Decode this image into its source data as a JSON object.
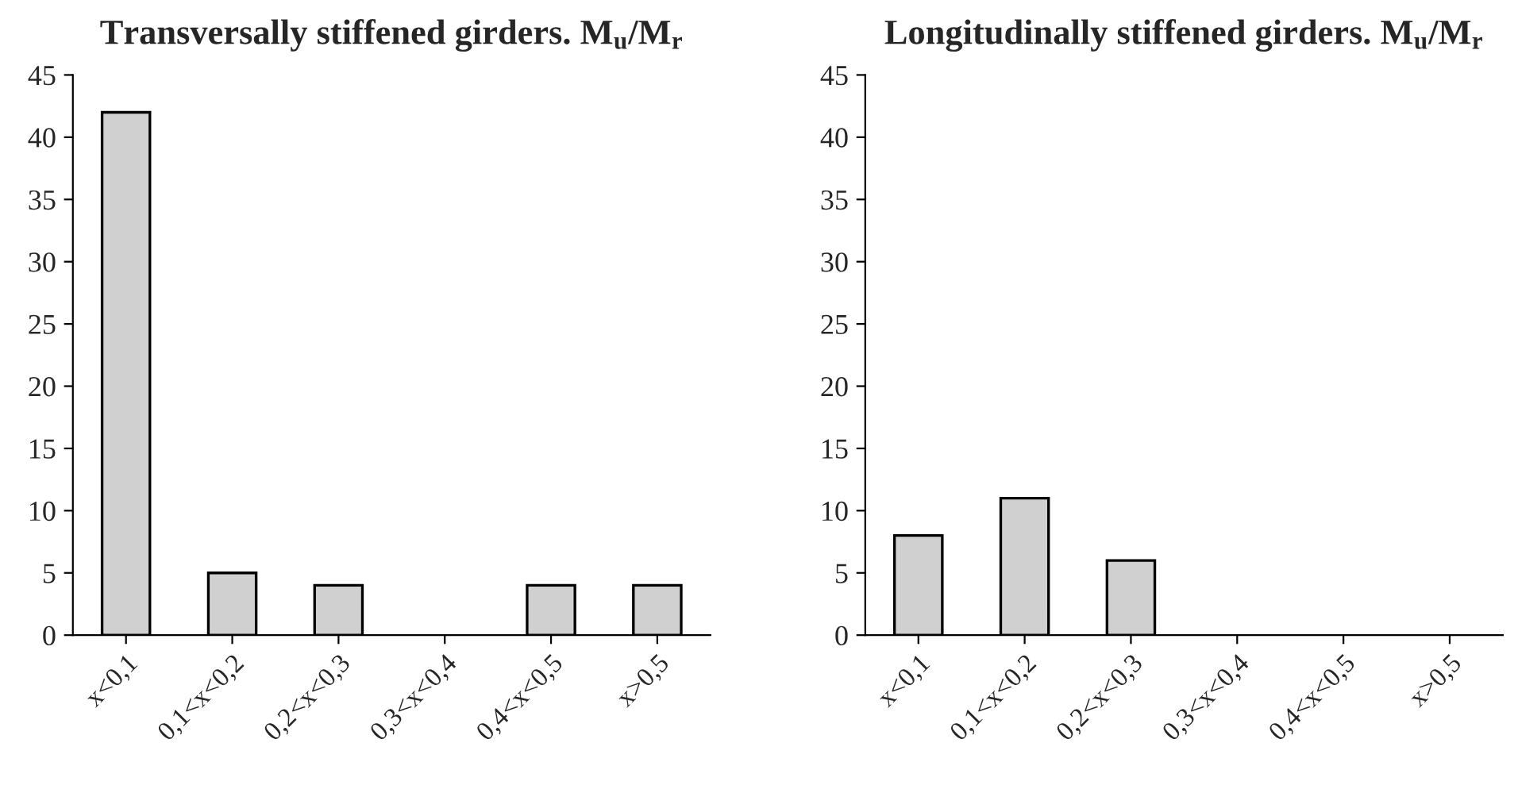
{
  "chart_data": [
    {
      "type": "bar",
      "title": "Transversally stiffened girders. M$_{u}$/M$_{r}$",
      "categories": [
        "x<0,1",
        "0,1<x<0,2",
        "0,2<x<0,3",
        "0,3<x<0,4",
        "0,4<x<0,5",
        "x>0,5"
      ],
      "values": [
        42,
        5,
        4,
        0,
        4,
        4
      ],
      "color": "#d0d0d0",
      "ylim": [
        0,
        45
      ],
      "yticks": [
        0,
        5,
        10,
        15,
        20,
        25,
        30,
        35,
        40,
        45
      ],
      "grid": false
    },
    {
      "type": "bar",
      "title": "Longitudinally stiffened girders. M$_{u}$/M$_{r}$",
      "categories": [
        "x<0,1",
        "0,1<x<0,2",
        "0,2<x<0,3",
        "0,3<x<0,4",
        "0,4<x<0,5",
        "x>0,5"
      ],
      "values": [
        8,
        11,
        6,
        0,
        0,
        0
      ],
      "color": "#d0d0d0",
      "ylim": [
        0,
        45
      ],
      "yticks": [
        0,
        5,
        10,
        15,
        20,
        25,
        30,
        35,
        40,
        45
      ],
      "grid": false
    }
  ]
}
